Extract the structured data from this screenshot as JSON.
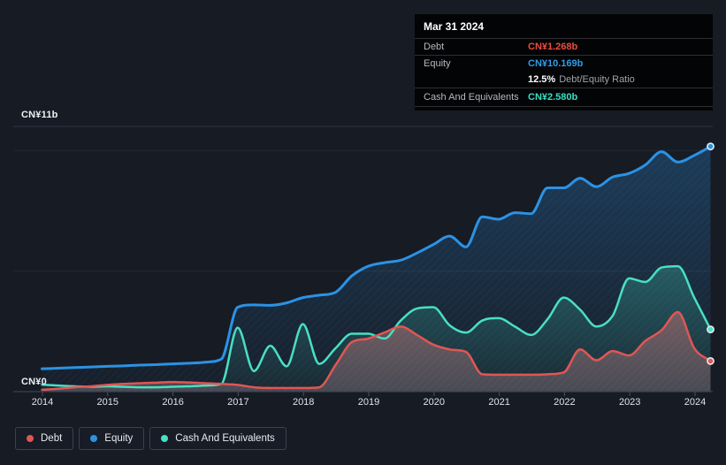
{
  "tooltip": {
    "title": "Mar 31 2024",
    "rows": {
      "debt": {
        "label": "Debt",
        "value": "CN¥1.268b",
        "value_color": "#ea4d42"
      },
      "equity": {
        "label": "Equity",
        "value": "CN¥10.169b",
        "value_color": "#2f9de8"
      },
      "ratio": {
        "value": "12.5%",
        "label": "Debt/Equity Ratio"
      },
      "cash": {
        "label": "Cash And Equivalents",
        "value": "CN¥2.580b",
        "value_color": "#3bdec3"
      }
    }
  },
  "chart_data": {
    "type": "area",
    "x_tick_labels": [
      "2014",
      "2015",
      "2016",
      "2017",
      "2018",
      "2019",
      "2020",
      "2021",
      "2022",
      "2023",
      "2024"
    ],
    "y_axis": {
      "top_label": "CN¥11b",
      "bottom_label": "CN¥0",
      "min": 0,
      "max": 11,
      "unit": "CN¥ billions",
      "gridline_values": [
        5,
        10,
        11
      ]
    },
    "legend_position": "bottom",
    "dates": [
      "2013-12",
      "2014-03",
      "2014-06",
      "2014-09",
      "2014-12",
      "2015-03",
      "2015-06",
      "2015-09",
      "2015-12",
      "2016-03",
      "2016-06",
      "2016-09",
      "2016-12",
      "2017-03",
      "2017-06",
      "2017-09",
      "2017-12",
      "2018-03",
      "2018-06",
      "2018-09",
      "2018-12",
      "2019-03",
      "2019-06",
      "2019-09",
      "2019-12",
      "2020-03",
      "2020-06",
      "2020-09",
      "2020-12",
      "2021-03",
      "2021-06",
      "2021-09",
      "2021-12",
      "2022-03",
      "2022-06",
      "2022-09",
      "2022-12",
      "2023-03",
      "2023-06",
      "2023-09",
      "2023-12",
      "2024-03"
    ],
    "series": [
      {
        "name": "Equity",
        "color": "#2b92e4",
        "values": [
          0.95,
          0.97,
          1.0,
          1.02,
          1.05,
          1.07,
          1.1,
          1.12,
          1.15,
          1.18,
          1.22,
          1.35,
          3.5,
          3.6,
          3.58,
          3.68,
          3.9,
          4.0,
          4.12,
          4.8,
          5.2,
          5.35,
          5.45,
          5.75,
          6.1,
          6.45,
          6.0,
          7.25,
          7.15,
          7.42,
          7.38,
          8.45,
          8.45,
          8.85,
          8.5,
          8.9,
          9.05,
          9.4,
          9.95,
          9.52,
          9.8,
          10.169
        ]
      },
      {
        "name": "Cash And Equivalents",
        "color": "#49dfc3",
        "values": [
          0.29,
          0.25,
          0.22,
          0.2,
          0.22,
          0.2,
          0.18,
          0.18,
          0.2,
          0.22,
          0.25,
          0.32,
          2.65,
          0.85,
          1.9,
          1.05,
          2.8,
          1.15,
          1.8,
          2.4,
          2.4,
          2.2,
          2.95,
          3.45,
          3.5,
          2.75,
          2.45,
          2.95,
          3.05,
          2.7,
          2.35,
          3.0,
          3.9,
          3.4,
          2.7,
          3.15,
          4.7,
          4.55,
          5.15,
          5.2,
          3.9,
          2.58
        ]
      },
      {
        "name": "Debt",
        "color": "#e15654",
        "values": [
          0.08,
          0.12,
          0.18,
          0.22,
          0.28,
          0.32,
          0.35,
          0.37,
          0.4,
          0.38,
          0.35,
          0.32,
          0.28,
          0.18,
          0.15,
          0.15,
          0.15,
          0.18,
          1.1,
          2.05,
          2.2,
          2.45,
          2.7,
          2.35,
          1.95,
          1.75,
          1.65,
          0.72,
          0.7,
          0.7,
          0.7,
          0.72,
          0.8,
          1.75,
          1.3,
          1.68,
          1.5,
          2.1,
          2.55,
          3.3,
          1.8,
          1.268
        ]
      }
    ],
    "legend_order": [
      "Debt",
      "Equity",
      "Cash And Equivalents"
    ]
  }
}
